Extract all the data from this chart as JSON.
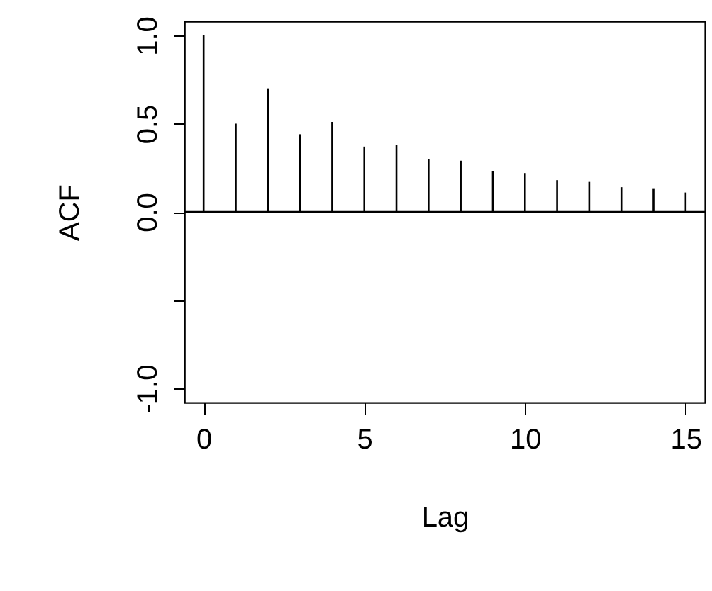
{
  "chart_data": {
    "type": "bar",
    "xlabel": "Lag",
    "ylabel": "ACF",
    "x": [
      0,
      1,
      2,
      3,
      4,
      5,
      6,
      7,
      8,
      9,
      10,
      11,
      12,
      13,
      14,
      15
    ],
    "values": [
      1.0,
      0.5,
      0.7,
      0.44,
      0.51,
      0.37,
      0.38,
      0.3,
      0.29,
      0.23,
      0.22,
      0.18,
      0.17,
      0.14,
      0.13,
      0.11
    ],
    "color": "#000000",
    "xlim": [
      -0.6,
      15.6
    ],
    "ylim": [
      -1.08,
      1.08
    ],
    "xticks": [
      0,
      5,
      10,
      15
    ],
    "yticks": [
      {
        "value": -1.0,
        "label": "-1.0"
      },
      {
        "value": -0.5,
        "label": null
      },
      {
        "value": 0.0,
        "label": "0.0"
      },
      {
        "value": 0.5,
        "label": "0.5"
      },
      {
        "value": 1.0,
        "label": "1.0"
      }
    ],
    "ref_lines": [
      {
        "axis": "y",
        "value": 0,
        "color": "#000000"
      }
    ],
    "grid": false
  }
}
